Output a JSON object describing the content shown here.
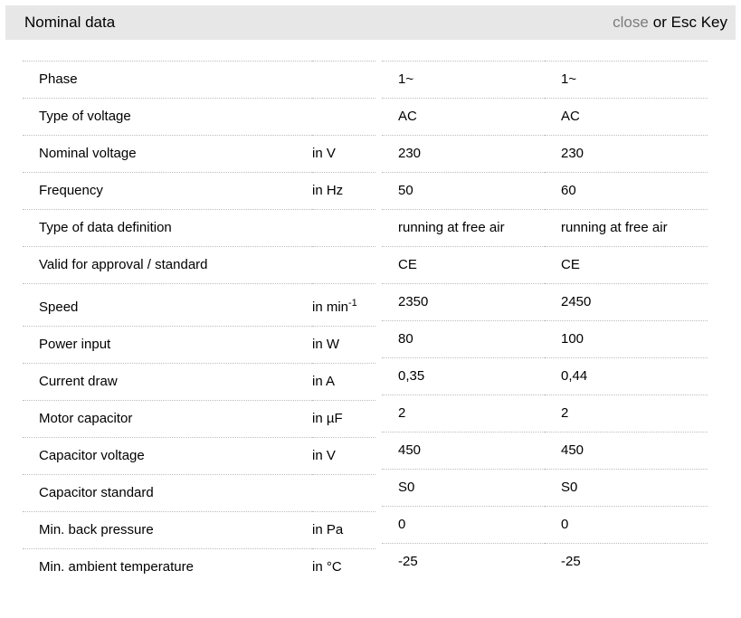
{
  "header": {
    "title": "Nominal data",
    "close_label": "close",
    "esc_hint": "or Esc Key"
  },
  "colors": {
    "header_bg": "#e7e7e7",
    "close_link": "#7c7c7c",
    "divider": "#bdbdbd",
    "text": "#000000"
  },
  "table": {
    "rows": [
      {
        "label": "Phase",
        "unit": "",
        "values": [
          "1~",
          "1~"
        ]
      },
      {
        "label": "Type of voltage",
        "unit": "",
        "values": [
          "AC",
          "AC"
        ]
      },
      {
        "label": "Nominal voltage",
        "unit": "in V",
        "values": [
          "230",
          "230"
        ]
      },
      {
        "label": "Frequency",
        "unit": "in Hz",
        "values": [
          "50",
          "60"
        ]
      },
      {
        "label": "Type of data definition",
        "unit": "",
        "values": [
          "running at free air",
          "running at free air"
        ]
      },
      {
        "label": "Valid for approval / standard",
        "unit": "",
        "values": [
          "CE",
          "CE"
        ]
      },
      {
        "label": "Speed",
        "unit": "in min",
        "unit_sup": "-1",
        "values": [
          "2350",
          "2450"
        ]
      },
      {
        "label": "Power input",
        "unit": "in W",
        "values": [
          "80",
          "100"
        ]
      },
      {
        "label": "Current draw",
        "unit": "in A",
        "values": [
          "0,35",
          "0,44"
        ]
      },
      {
        "label": "Motor capacitor",
        "unit": "in µF",
        "values": [
          "2",
          "2"
        ]
      },
      {
        "label": "Capacitor voltage",
        "unit": "in V",
        "values": [
          "450",
          "450"
        ]
      },
      {
        "label": "Capacitor standard",
        "unit": "",
        "values": [
          "S0",
          "S0"
        ]
      },
      {
        "label": "Min. back pressure",
        "unit": "in Pa",
        "values": [
          "0",
          "0"
        ]
      },
      {
        "label": "Min. ambient temperature",
        "unit": "in °C",
        "values": [
          "-25",
          "-25"
        ]
      }
    ]
  }
}
